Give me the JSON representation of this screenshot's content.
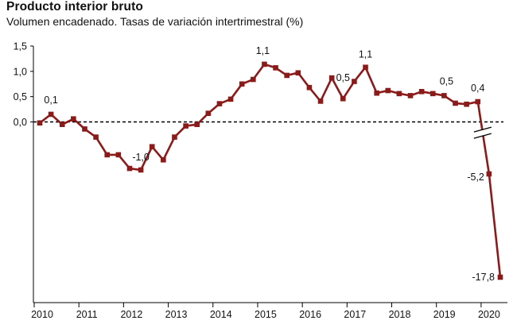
{
  "chart_data": {
    "type": "line",
    "title": "Producto interior bruto",
    "subtitle": "Volumen encadenado. Tasas de variación intertrimestral (%)",
    "xlabel": "",
    "ylabel": "",
    "x_tick_labels": [
      "2010",
      "2011",
      "2012",
      "2013",
      "2014",
      "2015",
      "2016",
      "2017",
      "2018",
      "2019",
      "2020"
    ],
    "y_tick_labels": [
      "1,5",
      "1,0",
      "0,5",
      "0,0"
    ],
    "y_ticks": [
      1.5,
      1.0,
      0.5,
      0.0
    ],
    "ylim": [
      -17.8,
      1.5
    ],
    "axis_break": "between 0,0 and -5,2",
    "grid": false,
    "reference_line": {
      "value": 0.0,
      "style": "dashed"
    },
    "line_color": "#8B1A1A",
    "series": [
      {
        "x": [
          "2010-Q1",
          "2010-Q2",
          "2010-Q3",
          "2010-Q4",
          "2011-Q1",
          "2011-Q2",
          "2011-Q3",
          "2011-Q4",
          "2012-Q1",
          "2012-Q2",
          "2012-Q3",
          "2012-Q4",
          "2013-Q1",
          "2013-Q2",
          "2013-Q3",
          "2013-Q4",
          "2014-Q1",
          "2014-Q2",
          "2014-Q3",
          "2014-Q4",
          "2015-Q1",
          "2015-Q2",
          "2015-Q3",
          "2015-Q4",
          "2016-Q1",
          "2016-Q2",
          "2016-Q3",
          "2016-Q4",
          "2017-Q1",
          "2017-Q2",
          "2017-Q3",
          "2017-Q4",
          "2018-Q1",
          "2018-Q2",
          "2018-Q3",
          "2018-Q4",
          "2019-Q1",
          "2019-Q2",
          "2019-Q3",
          "2019-Q4",
          "2020-Q1",
          "2020-Q2"
        ],
        "values": [
          -0.02,
          0.15,
          -0.05,
          0.06,
          -0.14,
          -0.3,
          -0.65,
          -0.65,
          -0.92,
          -0.95,
          -0.49,
          -0.75,
          -0.3,
          -0.08,
          -0.05,
          0.17,
          0.36,
          0.45,
          0.75,
          0.84,
          1.14,
          1.07,
          0.92,
          0.97,
          0.68,
          0.41,
          0.87,
          0.46,
          0.8,
          1.08,
          0.57,
          0.62,
          0.56,
          0.52,
          0.6,
          0.56,
          0.52,
          0.37,
          0.35,
          0.4,
          -5.2,
          -17.8
        ]
      }
    ],
    "data_labels": [
      {
        "text": "0,1",
        "index": 1
      },
      {
        "text": "-1,0",
        "index": 9
      },
      {
        "text": "1,1",
        "index": 20
      },
      {
        "text": "0,5",
        "index": 27
      },
      {
        "text": "1,1",
        "index": 29
      },
      {
        "text": "0,5",
        "index": 36
      },
      {
        "text": "0,4",
        "index": 39
      },
      {
        "text": "-5,2",
        "index": 40
      },
      {
        "text": "-17,8",
        "index": 41
      }
    ]
  }
}
